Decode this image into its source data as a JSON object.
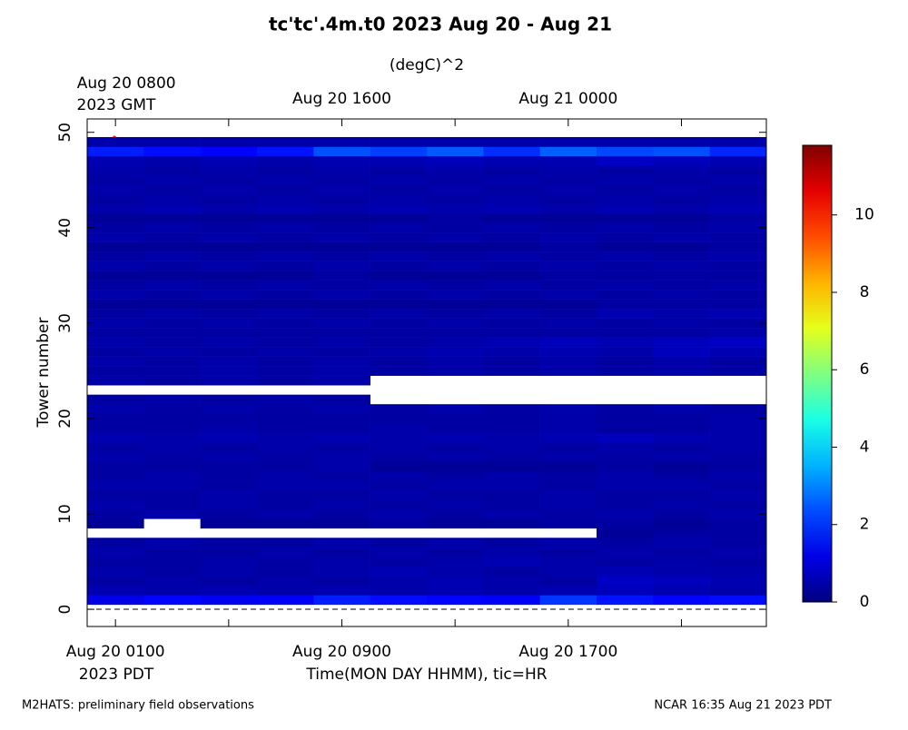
{
  "chart_data": {
    "type": "heatmap",
    "title": "tc'tc'.4m.t0 2023 Aug 20 - Aug 21",
    "colorbar_label": "(degC)^2",
    "ylabel": "Tower number",
    "xlabel": "Time(MON DAY HHMM), tic=HR",
    "x_timezone": "2023 PDT",
    "x2_timezone": "2023 GMT",
    "annotation": "^",
    "footer_left": "M2HATS: preliminary field observations",
    "footer_right": "NCAR 16:35 Aug 21 2023 PDT",
    "colormap": "jet",
    "xlim": [
      0,
      24
    ],
    "ylim": [
      -1.8,
      51.4
    ],
    "zlim": [
      0,
      11.8
    ],
    "xticks": [
      {
        "value": 1,
        "label": "Aug 20 0100"
      },
      {
        "value": 9,
        "label": "Aug 20 0900"
      },
      {
        "value": 17,
        "label": "Aug 20 1700"
      }
    ],
    "x2ticks": [
      {
        "value": 1,
        "label": "Aug 20 0800"
      },
      {
        "value": 9,
        "label": "Aug 20 1600"
      },
      {
        "value": 17,
        "label": "Aug 21 0000"
      }
    ],
    "xminorticks": [
      5,
      13,
      21
    ],
    "yticks": [
      0,
      10,
      20,
      30,
      40,
      50
    ],
    "zticks": [
      0,
      2,
      4,
      6,
      8,
      10
    ],
    "xbins": [
      0,
      2,
      4,
      6,
      8,
      10,
      12,
      14,
      16,
      18,
      20,
      22,
      24
    ],
    "y": [
      1,
      2,
      3,
      4,
      5,
      6,
      7,
      8,
      9,
      10,
      11,
      12,
      13,
      14,
      15,
      16,
      17,
      18,
      19,
      20,
      21,
      22,
      23,
      24,
      25,
      26,
      27,
      28,
      29,
      30,
      31,
      32,
      33,
      34,
      35,
      36,
      37,
      38,
      39,
      40,
      41,
      42,
      43,
      44,
      45,
      46,
      47,
      48,
      49
    ],
    "z": [
      [
        1.2,
        1.5,
        1.3,
        1.4,
        1.8,
        1.6,
        1.5,
        1.4,
        2.1,
        1.7,
        1.5,
        1.6
      ],
      [
        0.6,
        0.5,
        0.6,
        0.5,
        0.6,
        0.5,
        0.6,
        0.5,
        0.6,
        0.7,
        0.6,
        0.5
      ],
      [
        0.4,
        0.5,
        0.4,
        0.5,
        0.4,
        0.5,
        0.6,
        0.5,
        0.4,
        0.8,
        0.7,
        0.6
      ],
      [
        0.5,
        0.4,
        0.5,
        0.4,
        0.5,
        0.6,
        0.5,
        0.4,
        0.5,
        0.6,
        0.5,
        0.5
      ],
      [
        0.4,
        0.4,
        0.5,
        0.4,
        0.5,
        0.4,
        0.5,
        0.6,
        0.5,
        0.4,
        0.5,
        0.4
      ],
      [
        0.5,
        0.4,
        0.4,
        0.5,
        0.4,
        0.5,
        0.4,
        0.5,
        0.4,
        0.5,
        0.4,
        0.5
      ],
      [
        0.4,
        0.5,
        0.4,
        0.4,
        0.5,
        0.4,
        0.5,
        0.4,
        0.5,
        0.4,
        0.5,
        0.4
      ],
      [
        null,
        null,
        null,
        null,
        null,
        null,
        null,
        null,
        null,
        0.3,
        0.4,
        0.4
      ],
      [
        0.3,
        null,
        0.3,
        0.3,
        0.3,
        0.4,
        0.3,
        0.3,
        0.4,
        0.4,
        0.3,
        0.4
      ],
      [
        0.4,
        0.5,
        0.4,
        0.5,
        0.4,
        0.5,
        0.4,
        0.5,
        0.4,
        0.5,
        0.4,
        0.5
      ],
      [
        0.5,
        0.4,
        0.5,
        0.4,
        0.5,
        0.4,
        0.5,
        0.4,
        0.5,
        0.4,
        0.5,
        0.4
      ],
      [
        0.4,
        0.4,
        0.5,
        0.4,
        0.4,
        0.5,
        0.4,
        0.4,
        0.5,
        0.4,
        0.4,
        0.5
      ],
      [
        0.5,
        0.5,
        0.4,
        0.5,
        0.5,
        0.4,
        0.5,
        0.5,
        0.4,
        0.5,
        0.5,
        0.4
      ],
      [
        0.4,
        0.5,
        0.4,
        0.5,
        0.4,
        0.5,
        0.4,
        0.5,
        0.4,
        0.5,
        0.4,
        0.5
      ],
      [
        0.4,
        0.4,
        0.4,
        0.4,
        0.5,
        0.3,
        0.3,
        0.3,
        0.3,
        0.4,
        0.3,
        0.4
      ],
      [
        0.5,
        0.4,
        0.5,
        0.4,
        0.5,
        0.4,
        0.5,
        0.4,
        0.5,
        0.4,
        0.5,
        0.4
      ],
      [
        0.4,
        0.5,
        0.4,
        0.5,
        0.4,
        0.5,
        0.4,
        0.5,
        0.4,
        0.5,
        0.4,
        0.5
      ],
      [
        0.6,
        0.5,
        0.6,
        0.5,
        0.6,
        0.5,
        0.6,
        0.5,
        0.6,
        0.7,
        0.6,
        0.5
      ],
      [
        0.4,
        0.4,
        0.5,
        0.4,
        0.4,
        0.5,
        0.4,
        0.4,
        0.5,
        0.4,
        0.4,
        0.5
      ],
      [
        0.4,
        0.4,
        0.4,
        0.4,
        0.4,
        0.4,
        0.4,
        0.4,
        0.5,
        0.4,
        0.4,
        0.5
      ],
      [
        0.5,
        0.4,
        0.5,
        0.4,
        0.5,
        0.4,
        0.5,
        0.4,
        0.5,
        0.4,
        0.5,
        0.4
      ],
      [
        0.4,
        0.5,
        0.4,
        0.5,
        0.4,
        null,
        null,
        null,
        null,
        null,
        null,
        null
      ],
      [
        null,
        null,
        null,
        null,
        null,
        null,
        null,
        null,
        null,
        null,
        null,
        null
      ],
      [
        0.5,
        0.4,
        0.5,
        0.4,
        0.5,
        null,
        null,
        null,
        null,
        null,
        null,
        null
      ],
      [
        0.4,
        0.4,
        0.5,
        0.4,
        0.5,
        0.4,
        0.5,
        0.4,
        0.5,
        0.4,
        0.5,
        0.4
      ],
      [
        0.5,
        0.4,
        0.5,
        0.4,
        0.5,
        0.4,
        0.5,
        0.4,
        0.5,
        0.4,
        0.5,
        0.4
      ],
      [
        0.4,
        0.5,
        0.4,
        0.5,
        0.4,
        0.5,
        0.6,
        0.5,
        0.6,
        0.5,
        0.7,
        0.6
      ],
      [
        0.5,
        0.4,
        0.5,
        0.4,
        0.5,
        0.4,
        0.5,
        0.6,
        0.7,
        0.6,
        0.7,
        0.8
      ],
      [
        0.4,
        0.4,
        0.4,
        0.4,
        0.4,
        0.4,
        0.4,
        0.4,
        0.4,
        0.4,
        0.4,
        0.5
      ],
      [
        0.5,
        0.4,
        0.5,
        0.4,
        0.5,
        0.4,
        0.5,
        0.4,
        0.5,
        0.4,
        0.5,
        0.4
      ],
      [
        0.4,
        0.5,
        0.4,
        0.5,
        0.4,
        0.5,
        0.4,
        0.5,
        0.4,
        0.6,
        0.5,
        0.6
      ],
      [
        0.3,
        0.3,
        0.3,
        0.3,
        0.3,
        0.3,
        0.3,
        0.3,
        0.3,
        0.4,
        0.4,
        0.4
      ],
      [
        0.5,
        0.4,
        0.5,
        0.4,
        0.5,
        0.4,
        0.5,
        0.4,
        0.5,
        0.4,
        0.5,
        0.4
      ],
      [
        0.4,
        0.5,
        0.4,
        0.5,
        0.4,
        0.5,
        0.4,
        0.5,
        0.4,
        0.5,
        0.4,
        0.5
      ],
      [
        0.3,
        0.3,
        0.3,
        0.3,
        0.4,
        0.3,
        0.3,
        0.3,
        0.4,
        0.4,
        0.4,
        0.4
      ],
      [
        0.5,
        0.4,
        0.5,
        0.4,
        0.5,
        0.4,
        0.5,
        0.4,
        0.5,
        0.4,
        0.5,
        0.4
      ],
      [
        0.4,
        0.5,
        0.4,
        0.5,
        0.4,
        0.5,
        0.4,
        0.5,
        0.4,
        0.5,
        0.4,
        0.5
      ],
      [
        0.3,
        0.3,
        0.3,
        0.3,
        0.3,
        0.3,
        0.3,
        0.3,
        0.4,
        0.3,
        0.3,
        0.4
      ],
      [
        0.5,
        0.4,
        0.5,
        0.4,
        0.5,
        0.4,
        0.5,
        0.4,
        0.5,
        0.4,
        0.5,
        0.4
      ],
      [
        0.4,
        0.5,
        0.4,
        0.5,
        0.4,
        0.5,
        0.4,
        0.5,
        0.4,
        0.5,
        0.4,
        0.5
      ],
      [
        0.3,
        0.3,
        0.3,
        0.3,
        0.3,
        0.3,
        0.4,
        0.3,
        0.3,
        0.3,
        0.3,
        0.4
      ],
      [
        0.5,
        0.6,
        0.5,
        0.6,
        0.5,
        0.6,
        0.5,
        0.6,
        0.5,
        0.6,
        0.5,
        0.6
      ],
      [
        0.4,
        0.5,
        0.4,
        0.5,
        0.4,
        0.5,
        0.4,
        0.5,
        0.4,
        0.5,
        0.4,
        0.5
      ],
      [
        0.5,
        0.4,
        0.5,
        0.4,
        0.5,
        0.4,
        0.5,
        0.4,
        0.5,
        0.4,
        0.5,
        0.4
      ],
      [
        0.4,
        0.5,
        0.4,
        0.5,
        0.4,
        0.5,
        0.4,
        0.5,
        0.4,
        0.5,
        0.4,
        0.5
      ],
      [
        0.5,
        0.4,
        0.5,
        0.4,
        0.5,
        0.4,
        0.5,
        0.4,
        0.5,
        0.4,
        0.5,
        0.4
      ],
      [
        0.6,
        0.5,
        0.6,
        0.5,
        0.6,
        0.6,
        0.7,
        0.6,
        0.6,
        0.8,
        0.7,
        0.6
      ],
      [
        1.8,
        1.6,
        1.5,
        1.7,
        2.4,
        2.2,
        2.5,
        2.0,
        2.6,
        2.3,
        2.4,
        1.9
      ],
      [
        0.5,
        0.5,
        0.5,
        0.5,
        0.5,
        0.5,
        0.5,
        0.5,
        0.5,
        0.5,
        0.5,
        0.5
      ]
    ]
  }
}
